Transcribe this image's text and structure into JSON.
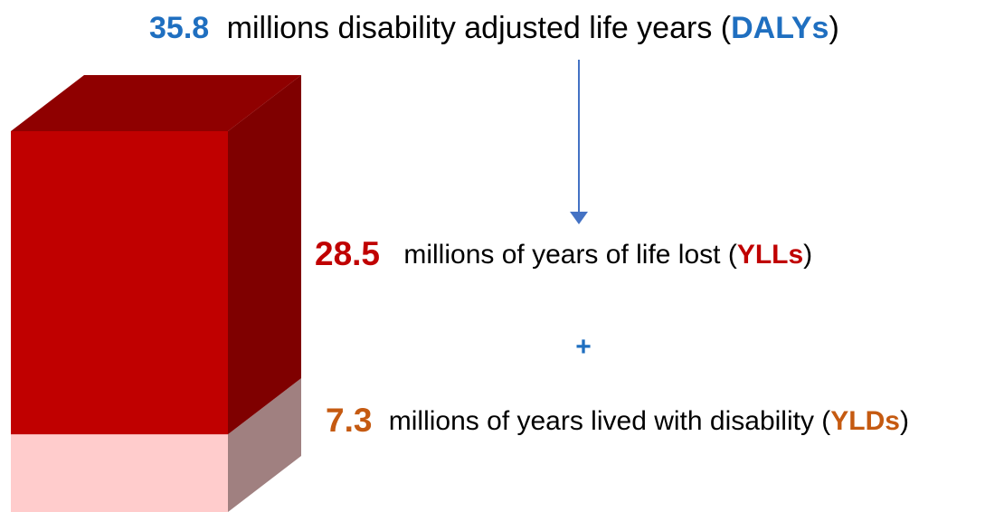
{
  "chart_data": {
    "type": "stacked-bar-3d",
    "total": 35.8,
    "total_text": "millions disability adjusted life years (",
    "total_abbr": "DALYs",
    "total_tail": ")",
    "total_color": "#1f6fc0",
    "top_color": "#8f0000",
    "operator": "+",
    "series": [
      {
        "name": "millions of years of life lost (",
        "abbr": "YLLs",
        "tail": ")",
        "values": [
          28.5
        ],
        "color": "#c00000",
        "side_color": "#7f0000",
        "label_color": "#c00000"
      },
      {
        "name": "millions of years lived with disability (",
        "abbr": "YLDs",
        "tail": ")",
        "values": [
          7.3
        ],
        "color": "#ffcccc",
        "side_color": "#a08080",
        "label_color": "#c55a11"
      }
    ]
  }
}
